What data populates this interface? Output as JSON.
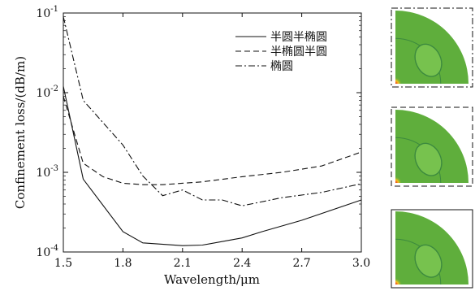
{
  "chart_data": {
    "type": "line",
    "xlabel": "Wavelength/μm",
    "ylabel": "Confinement loss/(dB/m)",
    "xlim": [
      1.5,
      3.0
    ],
    "ylim": [
      0.0001,
      0.1
    ],
    "yscale": "log",
    "x_ticks": [
      "1.5",
      "1.8",
      "2.1",
      "2.4",
      "2.7",
      "3.0"
    ],
    "y_ticks": [
      {
        "base": "10",
        "exp": "-4"
      },
      {
        "base": "10",
        "exp": "-3"
      },
      {
        "base": "10",
        "exp": "-2"
      },
      {
        "base": "10",
        "exp": "-1"
      }
    ],
    "legend_position": "top-right",
    "series": [
      {
        "name": "半圆半椭圆",
        "dash": "solid",
        "x": [
          1.5,
          1.6,
          1.8,
          1.9,
          2.1,
          2.2,
          2.4,
          2.5,
          2.7,
          3.0
        ],
        "y": [
          0.012,
          0.00082,
          0.00018,
          0.00013,
          0.00012,
          0.000122,
          0.00015,
          0.00018,
          0.00025,
          0.00045
        ]
      },
      {
        "name": "半椭圆半圆",
        "dash": "dashed",
        "x": [
          1.5,
          1.6,
          1.7,
          1.8,
          1.9,
          2.0,
          2.2,
          2.4,
          2.6,
          2.8,
          3.0
        ],
        "y": [
          0.009,
          0.0013,
          0.00088,
          0.00073,
          0.0007,
          0.0007,
          0.00076,
          0.00088,
          0.001,
          0.0012,
          0.0018
        ]
      },
      {
        "name": "椭圆",
        "dash": "dash-dot",
        "x": [
          1.5,
          1.6,
          1.8,
          1.9,
          2.0,
          2.1,
          2.2,
          2.3,
          2.4,
          2.6,
          2.8,
          3.0
        ],
        "y": [
          0.09,
          0.008,
          0.0022,
          0.0009,
          0.00051,
          0.0006,
          0.00045,
          0.00045,
          0.00038,
          0.00048,
          0.00056,
          0.00072
        ]
      }
    ]
  },
  "insets": [
    {
      "border": "dash-dot"
    },
    {
      "border": "dashed"
    },
    {
      "border": "solid"
    }
  ],
  "colors": {
    "field": "#5fae3c",
    "field_light": "#77c24e",
    "hot": "#e8261b",
    "warm": "#f6c21f",
    "ring": "#3c8a3e"
  }
}
